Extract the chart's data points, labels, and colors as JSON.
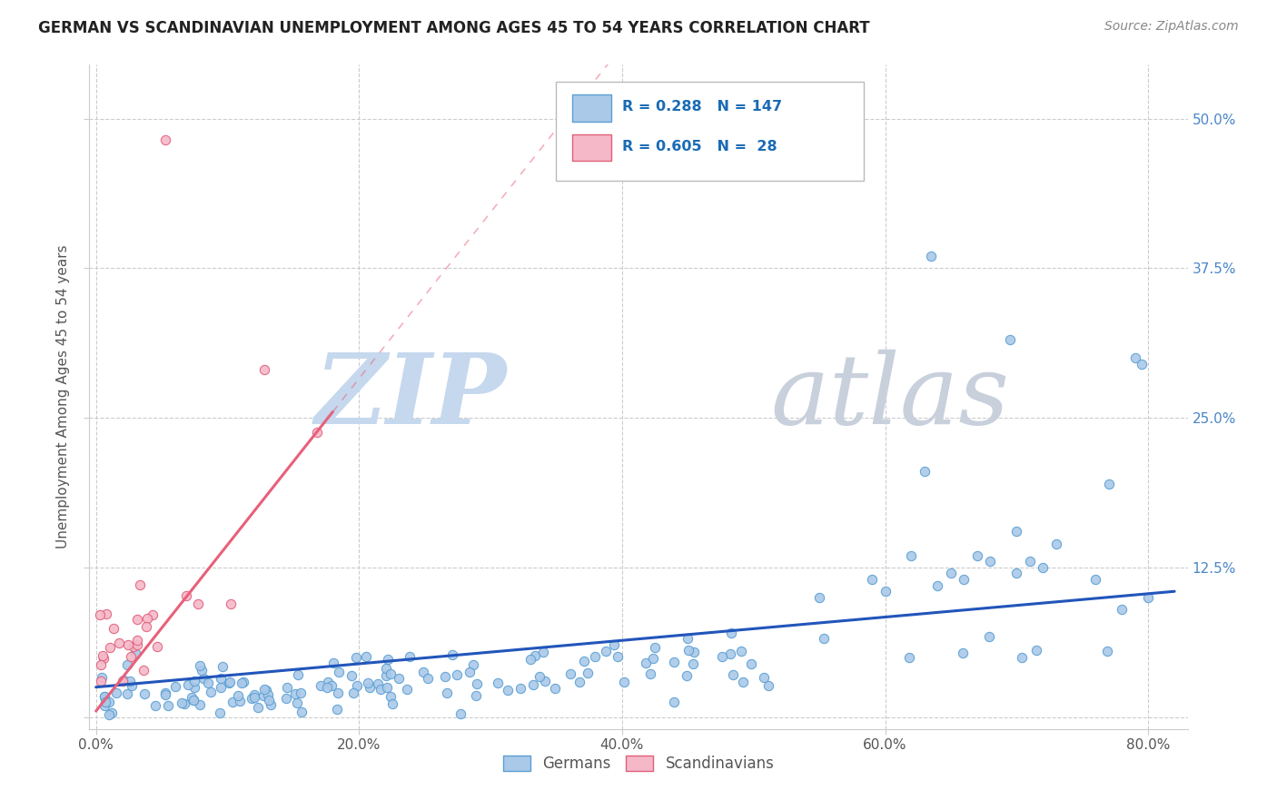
{
  "title": "GERMAN VS SCANDINAVIAN UNEMPLOYMENT AMONG AGES 45 TO 54 YEARS CORRELATION CHART",
  "source": "Source: ZipAtlas.com",
  "ylabel": "Unemployment Among Ages 45 to 54 years",
  "xlim": [
    -0.005,
    0.83
  ],
  "ylim": [
    -0.01,
    0.545
  ],
  "xticks": [
    0.0,
    0.2,
    0.4,
    0.6,
    0.8
  ],
  "xtick_labels": [
    "0.0%",
    "20.0%",
    "40.0%",
    "60.0%",
    "80.0%"
  ],
  "yticks": [
    0.0,
    0.125,
    0.25,
    0.375,
    0.5
  ],
  "ytick_labels": [
    "",
    "12.5%",
    "25.0%",
    "37.5%",
    "50.0%"
  ],
  "german_color": "#aac9e8",
  "german_edge": "#5b9fd4",
  "scandinavian_color": "#f5b8c8",
  "scandinavian_edge": "#e0607a",
  "german_R": 0.288,
  "german_N": 147,
  "scandinavian_R": 0.605,
  "scandinavian_N": 28,
  "legend_label_german": "Germans",
  "legend_label_scandinavian": "Scandinavians",
  "background_color": "#ffffff",
  "grid_color": "#cccccc",
  "trend_german_color": "#2255bb",
  "trend_scand_color": "#e8607a",
  "trend_german_x0": 0.0,
  "trend_german_x1": 0.82,
  "trend_german_y0": 0.025,
  "trend_german_y1": 0.105,
  "trend_scand_x0": 0.0,
  "trend_scand_x1": 0.18,
  "trend_scand_y0": 0.005,
  "trend_scand_y1": 0.255,
  "watermark_zip_color": "#c5d8ee",
  "watermark_atlas_color": "#c8d0dc"
}
